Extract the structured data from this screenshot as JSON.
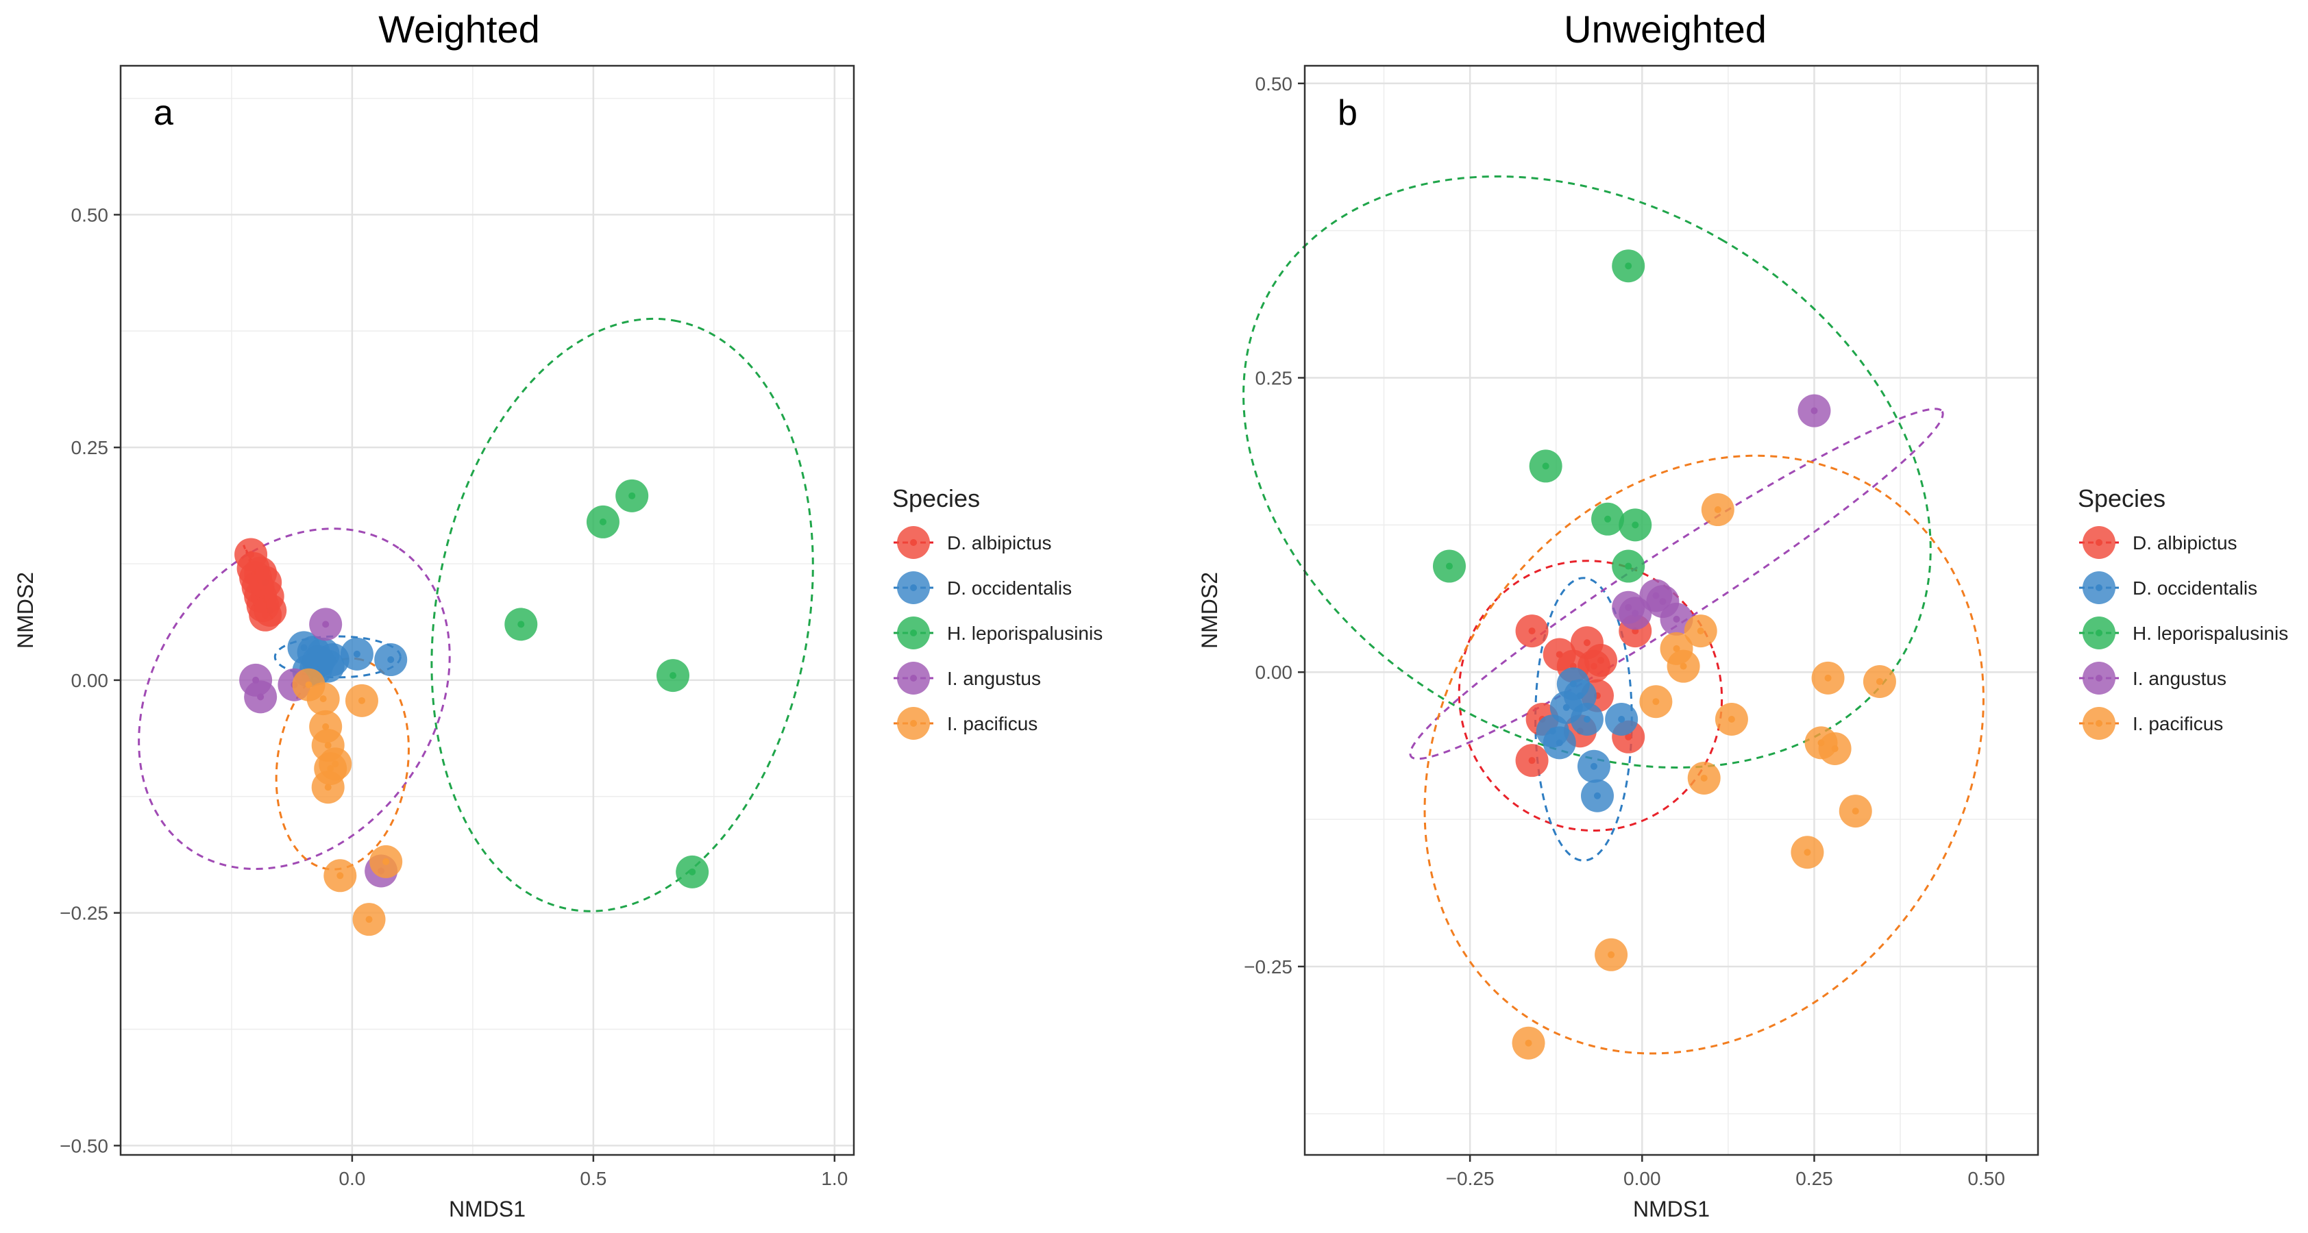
{
  "colors": {
    "D. albipictus": "#F04A3C",
    "D. occidentalis": "#3A86C8",
    "H. leporispalusinis": "#2CB65A",
    "I. angustus": "#A05AB4",
    "I. pacificus": "#F99A3A",
    "ellipse_albipictus": "#E8222A",
    "ellipse_occidentalis": "#2E7DC2",
    "ellipse_leporis": "#1FA54A",
    "ellipse_angustus": "#A04AB4",
    "ellipse_pacificus": "#F27D1F"
  },
  "legend": {
    "title": "Species",
    "entries": [
      "D. albipictus",
      "D. occidentalis",
      "H. leporispalusinis",
      "I. angustus",
      "I. pacificus"
    ]
  },
  "chart_data": [
    {
      "type": "scatter",
      "title": "Weighted",
      "panel_label": "a",
      "xlabel": "NMDS1",
      "ylabel": "NMDS2",
      "xlim": [
        -0.48,
        1.04
      ],
      "ylim": [
        -0.51,
        0.66
      ],
      "xticks": [
        0.0,
        0.5,
        1.0
      ],
      "xtick_labels": [
        "0.0",
        "0.5",
        "1.0"
      ],
      "yticks": [
        -0.5,
        -0.25,
        0.0,
        0.25,
        0.5
      ],
      "ytick_labels": [
        "−0.50",
        "−0.25",
        "0.00",
        "0.25",
        "0.50"
      ],
      "legend_position": "right",
      "series": [
        {
          "name": "D. albipictus",
          "points": [
            [
              -0.21,
              0.135
            ],
            [
              -0.205,
              0.12
            ],
            [
              -0.2,
              0.11
            ],
            [
              -0.195,
              0.1
            ],
            [
              -0.19,
              0.09
            ],
            [
              -0.185,
              0.08
            ],
            [
              -0.18,
              0.07
            ],
            [
              -0.175,
              0.09
            ],
            [
              -0.17,
              0.075
            ],
            [
              -0.19,
              0.115
            ],
            [
              -0.18,
              0.105
            ]
          ]
        },
        {
          "name": "D. occidentalis",
          "points": [
            [
              -0.1,
              0.035
            ],
            [
              -0.08,
              0.03
            ],
            [
              -0.07,
              0.02
            ],
            [
              -0.06,
              0.028
            ],
            [
              -0.05,
              0.015
            ],
            [
              -0.04,
              0.022
            ],
            [
              0.01,
              0.028
            ],
            [
              0.08,
              0.022
            ],
            [
              -0.09,
              0.01
            ],
            [
              -0.075,
              0.012
            ]
          ]
        },
        {
          "name": "H. leporispalusinis",
          "points": [
            [
              0.35,
              0.06
            ],
            [
              0.52,
              0.17
            ],
            [
              0.58,
              0.198
            ],
            [
              0.665,
              0.005
            ],
            [
              0.705,
              -0.206
            ]
          ]
        },
        {
          "name": "I. angustus",
          "points": [
            [
              -0.2,
              0.0
            ],
            [
              -0.19,
              -0.018
            ],
            [
              -0.055,
              0.06
            ],
            [
              0.06,
              -0.205
            ],
            [
              -0.12,
              -0.005
            ]
          ]
        },
        {
          "name": "I. pacificus",
          "points": [
            [
              -0.09,
              -0.005
            ],
            [
              -0.06,
              -0.02
            ],
            [
              -0.055,
              -0.05
            ],
            [
              -0.05,
              -0.07
            ],
            [
              -0.045,
              -0.095
            ],
            [
              -0.05,
              -0.115
            ],
            [
              -0.035,
              -0.09
            ],
            [
              0.02,
              -0.022
            ],
            [
              0.07,
              -0.195
            ],
            [
              -0.025,
              -0.21
            ],
            [
              0.035,
              -0.257
            ]
          ]
        }
      ],
      "ellipses": [
        {
          "name": "D. albipictus",
          "center": [
            -0.195,
            0.105
          ],
          "points": [
            [
              -0.225,
              0.145
            ],
            [
              -0.165,
              0.065
            ],
            [
              -0.18,
              0.08
            ],
            [
              -0.21,
              0.13
            ]
          ]
        },
        {
          "name": "D. occidentalis",
          "center": [
            -0.03,
            0.025
          ],
          "rx": 0.13,
          "ry": 0.022,
          "angle": 0
        },
        {
          "name": "H. leporispalusinis",
          "center": [
            0.56,
            0.07
          ],
          "rx": 0.62,
          "ry": 0.2,
          "angle": -80
        },
        {
          "name": "I. angustus",
          "center": [
            -0.12,
            -0.02
          ],
          "rx": 0.38,
          "ry": 0.15,
          "angle": -55
        },
        {
          "name": "I. pacificus",
          "center": [
            -0.02,
            -0.09
          ],
          "rx": 0.22,
          "ry": 0.07,
          "angle": -82
        }
      ]
    },
    {
      "type": "scatter",
      "title": "Unweighted",
      "panel_label": "b",
      "xlabel": "NMDS1",
      "ylabel": "NMDS2",
      "xlim": [
        -0.49,
        0.575
      ],
      "ylim": [
        -0.41,
        0.515
      ],
      "xticks": [
        -0.25,
        0.0,
        0.25,
        0.5
      ],
      "xtick_labels": [
        "−0.25",
        "0.00",
        "0.25",
        "0.50"
      ],
      "yticks": [
        -0.25,
        0.0,
        0.25,
        0.5
      ],
      "ytick_labels": [
        "−0.25",
        "0.00",
        "0.25",
        "0.50"
      ],
      "legend_position": "right",
      "series": [
        {
          "name": "D. albipictus",
          "points": [
            [
              -0.16,
              -0.075
            ],
            [
              -0.145,
              -0.04
            ],
            [
              -0.12,
              0.015
            ],
            [
              -0.1,
              0.005
            ],
            [
              -0.08,
              0.025
            ],
            [
              -0.07,
              0.005
            ],
            [
              -0.065,
              -0.02
            ],
            [
              -0.09,
              -0.05
            ],
            [
              -0.02,
              -0.055
            ],
            [
              -0.01,
              0.035
            ],
            [
              -0.06,
              0.01
            ],
            [
              -0.16,
              0.035
            ]
          ]
        },
        {
          "name": "D. occidentalis",
          "points": [
            [
              -0.12,
              -0.06
            ],
            [
              -0.11,
              -0.03
            ],
            [
              -0.1,
              -0.01
            ],
            [
              -0.09,
              -0.02
            ],
            [
              -0.08,
              -0.04
            ],
            [
              -0.07,
              -0.08
            ],
            [
              -0.065,
              -0.105
            ],
            [
              -0.03,
              -0.04
            ],
            [
              -0.13,
              -0.05
            ]
          ]
        },
        {
          "name": "H. leporispalusinis",
          "points": [
            [
              -0.02,
              0.345
            ],
            [
              -0.14,
              0.175
            ],
            [
              -0.05,
              0.13
            ],
            [
              -0.01,
              0.125
            ],
            [
              -0.28,
              0.09
            ],
            [
              -0.02,
              0.09
            ]
          ]
        },
        {
          "name": "I. angustus",
          "points": [
            [
              0.25,
              0.222
            ],
            [
              0.02,
              0.065
            ],
            [
              -0.01,
              0.05
            ],
            [
              0.05,
              0.045
            ],
            [
              0.03,
              0.06
            ],
            [
              -0.02,
              0.055
            ]
          ]
        },
        {
          "name": "I. pacificus",
          "points": [
            [
              0.11,
              0.138
            ],
            [
              0.085,
              0.035
            ],
            [
              0.05,
              0.02
            ],
            [
              0.06,
              0.005
            ],
            [
              0.02,
              -0.025
            ],
            [
              0.13,
              -0.04
            ],
            [
              0.09,
              -0.09
            ],
            [
              0.27,
              -0.005
            ],
            [
              0.345,
              -0.008
            ],
            [
              0.26,
              -0.06
            ],
            [
              0.28,
              -0.065
            ],
            [
              0.31,
              -0.118
            ],
            [
              0.24,
              -0.153
            ],
            [
              -0.045,
              -0.24
            ],
            [
              -0.165,
              -0.315
            ]
          ]
        }
      ],
      "ellipses": [
        {
          "name": "D. albipictus",
          "center": [
            -0.075,
            -0.02
          ],
          "rx": 0.19,
          "ry": 0.115,
          "angle": -20
        },
        {
          "name": "D. occidentalis",
          "center": [
            -0.085,
            -0.04
          ],
          "rx": 0.07,
          "ry": 0.12,
          "angle": 0
        },
        {
          "name": "H. leporispalusinis",
          "center": [
            -0.08,
            0.17
          ],
          "rx": 0.39,
          "ry": 0.31,
          "angle": -60
        },
        {
          "name": "I. angustus",
          "center": [
            0.05,
            0.075
          ],
          "rx": 0.46,
          "ry": 0.03,
          "angle": -33
        },
        {
          "name": "I. pacificus",
          "center": [
            0.09,
            -0.07
          ],
          "rx": 0.46,
          "ry": 0.22,
          "angle": -55
        }
      ]
    }
  ]
}
